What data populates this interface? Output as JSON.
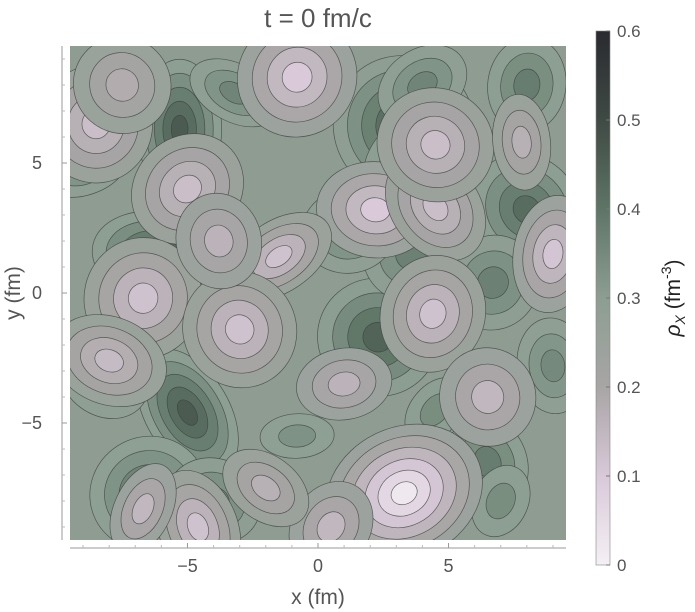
{
  "chart_data": {
    "type": "heatmap",
    "title": "t = 0 fm/c",
    "xlabel": "x (fm)",
    "ylabel": "y (fm)",
    "colorbar_label_main": "ρ",
    "colorbar_label_sub": "X",
    "colorbar_label_unit": " (fm",
    "colorbar_label_exp": "-3",
    "colorbar_label_close": ")",
    "xlim": [
      -9.5,
      9.5
    ],
    "ylim": [
      -9.5,
      9.5
    ],
    "x_ticks": [
      {
        "value": -5,
        "label": "−5"
      },
      {
        "value": 0,
        "label": "0"
      },
      {
        "value": 5,
        "label": "5"
      }
    ],
    "y_ticks": [
      {
        "value": -5,
        "label": "−5"
      },
      {
        "value": 0,
        "label": "0"
      },
      {
        "value": 5,
        "label": "5"
      }
    ],
    "colorbar_range": [
      0,
      0.6
    ],
    "colorbar_ticks": [
      {
        "value": 0,
        "label": "0"
      },
      {
        "value": 0.1,
        "label": "0.1"
      },
      {
        "value": 0.2,
        "label": "0.2"
      },
      {
        "value": 0.3,
        "label": "0.3"
      },
      {
        "value": 0.4,
        "label": "0.4"
      },
      {
        "value": 0.5,
        "label": "0.5"
      },
      {
        "value": 0.6,
        "label": "0.6"
      }
    ],
    "colormap": [
      "#f4f0f4",
      "#d9c9d9",
      "#a8a5a5",
      "#8c9e92",
      "#5e7566",
      "#3f4a44",
      "#2a2a30"
    ],
    "background_value": 0.27,
    "grid": false,
    "blobs": [
      {
        "x": -5.3,
        "y": 6.3,
        "value": 0.46
      },
      {
        "x": 3.3,
        "y": 6.4,
        "value": 0.45
      },
      {
        "x": 4.4,
        "y": 4.4,
        "value": 0.47
      },
      {
        "x": 8.0,
        "y": 3.2,
        "value": 0.42
      },
      {
        "x": 8.0,
        "y": 8.0,
        "value": 0.38
      },
      {
        "x": 4.0,
        "y": 8.0,
        "value": 0.36
      },
      {
        "x": -6.0,
        "y": 1.3,
        "value": 0.47
      },
      {
        "x": -5.0,
        "y": -4.6,
        "value": 0.46
      },
      {
        "x": 2.3,
        "y": -1.7,
        "value": 0.44
      },
      {
        "x": -6.5,
        "y": -7.7,
        "value": 0.4
      },
      {
        "x": -4.0,
        "y": -8.0,
        "value": 0.37
      },
      {
        "x": 6.5,
        "y": -6.5,
        "value": 0.38
      },
      {
        "x": 7.0,
        "y": -8.0,
        "value": 0.34
      },
      {
        "x": -9.0,
        "y": 5.0,
        "value": 0.36
      },
      {
        "x": -3.2,
        "y": 7.7,
        "value": 0.36
      },
      {
        "x": 3.6,
        "y": 1.5,
        "value": 0.37
      },
      {
        "x": 6.7,
        "y": 0.4,
        "value": 0.37
      },
      {
        "x": 1.2,
        "y": 2.4,
        "value": 0.36
      },
      {
        "x": -8.2,
        "y": -3.2,
        "value": 0.35
      },
      {
        "x": 9.0,
        "y": -2.8,
        "value": 0.35
      },
      {
        "x": 4.5,
        "y": -4.5,
        "value": 0.34
      },
      {
        "x": -0.8,
        "y": -5.5,
        "value": 0.33
      },
      {
        "x": -0.8,
        "y": 8.3,
        "value": 0.1
      },
      {
        "x": -8.5,
        "y": 6.5,
        "value": 0.13
      },
      {
        "x": -5.0,
        "y": 4.0,
        "value": 0.13
      },
      {
        "x": 2.2,
        "y": 3.2,
        "value": 0.1
      },
      {
        "x": 4.5,
        "y": 3.3,
        "value": 0.13
      },
      {
        "x": 9.0,
        "y": 1.5,
        "value": 0.11
      },
      {
        "x": -1.5,
        "y": 1.4,
        "value": 0.12
      },
      {
        "x": -6.7,
        "y": -0.2,
        "value": 0.12
      },
      {
        "x": -3.0,
        "y": -1.4,
        "value": 0.12
      },
      {
        "x": 4.4,
        "y": -0.8,
        "value": 0.12
      },
      {
        "x": 3.3,
        "y": -7.7,
        "value": 0.02
      },
      {
        "x": -8.0,
        "y": -2.6,
        "value": 0.14
      },
      {
        "x": -4.6,
        "y": -9.0,
        "value": 0.12
      },
      {
        "x": -6.7,
        "y": -8.3,
        "value": 0.15
      },
      {
        "x": 6.5,
        "y": -4.0,
        "value": 0.15
      },
      {
        "x": 4.5,
        "y": 5.7,
        "value": 0.13
      },
      {
        "x": -3.8,
        "y": 2.0,
        "value": 0.16
      },
      {
        "x": 0.5,
        "y": -9.0,
        "value": 0.15
      },
      {
        "x": 1.0,
        "y": -3.5,
        "value": 0.16
      },
      {
        "x": -2.0,
        "y": -7.5,
        "value": 0.17
      },
      {
        "x": 7.8,
        "y": 5.8,
        "value": 0.17
      },
      {
        "x": -7.5,
        "y": 8.0,
        "value": 0.18
      }
    ]
  }
}
